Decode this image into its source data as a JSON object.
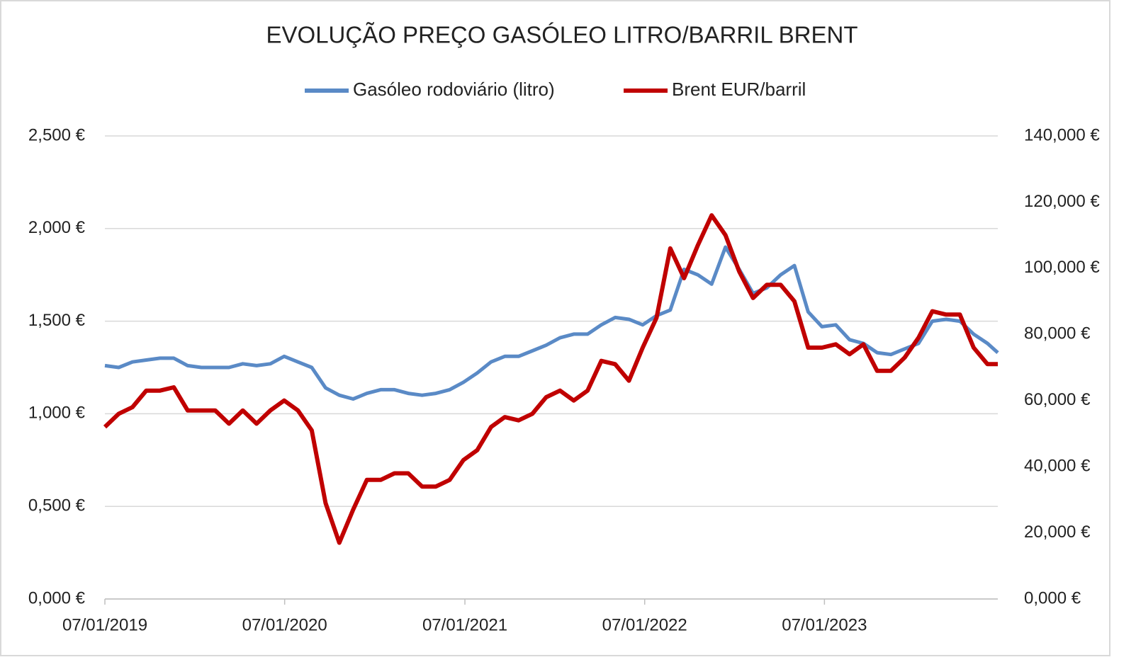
{
  "chart_data": {
    "type": "line",
    "title": "EVOLUÇÃO PREÇO GASÓLEO LITRO/BARRIL BRENT",
    "x": [
      "2019-01-07",
      "2019-02-04",
      "2019-03-04",
      "2019-04-01",
      "2019-04-29",
      "2019-05-27",
      "2019-06-24",
      "2019-07-22",
      "2019-08-19",
      "2019-09-16",
      "2019-10-14",
      "2019-11-11",
      "2019-12-09",
      "2020-01-06",
      "2020-02-03",
      "2020-03-02",
      "2020-03-30",
      "2020-04-27",
      "2020-05-25",
      "2020-06-22",
      "2020-07-20",
      "2020-08-17",
      "2020-09-14",
      "2020-10-12",
      "2020-11-09",
      "2020-12-07",
      "2021-01-04",
      "2021-02-01",
      "2021-03-01",
      "2021-03-29",
      "2021-04-26",
      "2021-05-24",
      "2021-06-21",
      "2021-07-19",
      "2021-08-16",
      "2021-09-13",
      "2021-10-11",
      "2021-11-08",
      "2021-12-06",
      "2022-01-03",
      "2022-01-31",
      "2022-02-28",
      "2022-03-28",
      "2022-04-25",
      "2022-05-23",
      "2022-06-20",
      "2022-07-18",
      "2022-08-15",
      "2022-09-12",
      "2022-10-10",
      "2022-11-07",
      "2022-12-05",
      "2023-01-02",
      "2023-01-30",
      "2023-02-27",
      "2023-03-27",
      "2023-04-24",
      "2023-05-22",
      "2023-06-19",
      "2023-07-17",
      "2023-08-14",
      "2023-09-11",
      "2023-10-09",
      "2023-11-06",
      "2023-12-04",
      "2023-12-25"
    ],
    "series": [
      {
        "name": "Gasóleo rodoviário (litro)",
        "color": "#5a8ac6",
        "values": [
          1.26,
          1.25,
          1.28,
          1.29,
          1.3,
          1.3,
          1.26,
          1.25,
          1.25,
          1.25,
          1.27,
          1.26,
          1.27,
          1.31,
          1.28,
          1.25,
          1.14,
          1.1,
          1.08,
          1.11,
          1.13,
          1.13,
          1.11,
          1.1,
          1.11,
          1.13,
          1.17,
          1.22,
          1.28,
          1.31,
          1.31,
          1.34,
          1.37,
          1.41,
          1.43,
          1.43,
          1.48,
          1.52,
          1.51,
          1.48,
          1.53,
          1.56,
          1.78,
          1.75,
          1.7,
          1.9,
          1.78,
          1.65,
          1.68,
          1.75,
          1.8,
          1.55,
          1.47,
          1.48,
          1.4,
          1.38,
          1.33,
          1.32,
          1.35,
          1.38,
          1.5,
          1.51,
          1.5,
          1.43,
          1.38,
          1.33
        ]
      },
      {
        "name": "Brent EUR/barril",
        "color": "#c00000",
        "axis": "y2",
        "values": [
          52,
          56,
          58,
          63,
          63,
          64,
          57,
          57,
          57,
          53,
          57,
          53,
          57,
          60,
          57,
          51,
          29,
          17,
          27,
          36,
          36,
          38,
          38,
          34,
          34,
          36,
          42,
          45,
          52,
          55,
          54,
          56,
          61,
          63,
          60,
          63,
          72,
          71,
          66,
          76,
          85,
          106,
          97,
          107,
          116,
          110,
          99,
          91,
          95,
          95,
          90,
          76,
          76,
          77,
          74,
          77,
          69,
          69,
          73,
          79,
          87,
          86,
          86,
          76,
          71,
          71
        ]
      }
    ],
    "xlim": [
      "2019-01-07",
      "2023-12-25"
    ],
    "xticks": [
      {
        "value": "2019-01-07",
        "label": "07/01/2019"
      },
      {
        "value": "2020-01-07",
        "label": "07/01/2020"
      },
      {
        "value": "2021-01-07",
        "label": "07/01/2021"
      },
      {
        "value": "2022-01-07",
        "label": "07/01/2022"
      },
      {
        "value": "2023-01-07",
        "label": "07/01/2023"
      }
    ],
    "ylim": [
      0,
      2.5
    ],
    "yticks": [
      {
        "value": 0,
        "label": "0,000 €"
      },
      {
        "value": 0.5,
        "label": "0,500 €"
      },
      {
        "value": 1,
        "label": "1,000 €"
      },
      {
        "value": 1.5,
        "label": "1,500 €"
      },
      {
        "value": 2,
        "label": "2,000 €"
      },
      {
        "value": 2.5,
        "label": "2,500 €"
      }
    ],
    "y2lim": [
      0,
      140
    ],
    "y2ticks": [
      {
        "value": 0,
        "label": "0,000 €"
      },
      {
        "value": 20,
        "label": "20,000 €"
      },
      {
        "value": 40,
        "label": "40,000 €"
      },
      {
        "value": 60,
        "label": "60,000 €"
      },
      {
        "value": 80,
        "label": "80,000 €"
      },
      {
        "value": 100,
        "label": "100,000 €"
      },
      {
        "value": 120,
        "label": "120,000 €"
      },
      {
        "value": 140,
        "label": "140,000 €"
      }
    ],
    "grid": true,
    "legend": "top"
  }
}
